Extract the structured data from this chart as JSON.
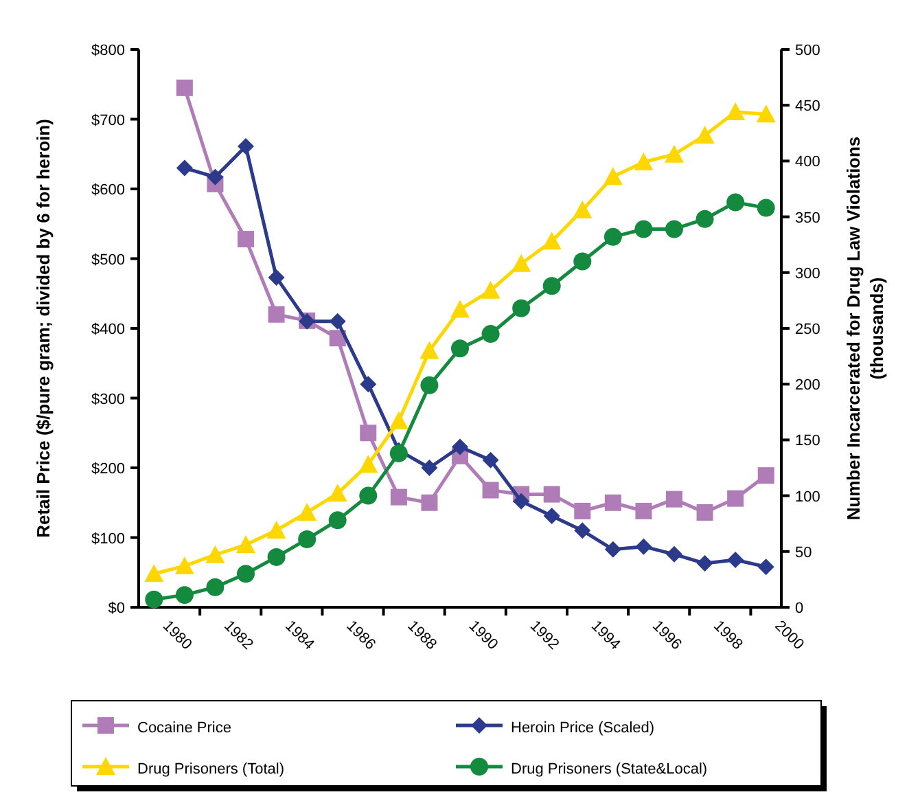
{
  "chart_data": {
    "type": "line",
    "ylabel": "Retail Price ($/pure gram; divided by 6 for heroin)",
    "y2label": "Number Incarcerated for Drug Law Violations\n(thousands)",
    "categories": [
      "1980",
      null,
      "1982",
      null,
      "1984",
      null,
      "1986",
      null,
      "1988",
      null,
      "1990",
      null,
      "1992",
      null,
      "1994",
      null,
      "1996",
      null,
      "1998",
      null,
      "2000"
    ],
    "ylim": [
      0,
      800
    ],
    "yticks": [
      {
        "value": 0,
        "label": "$0"
      },
      {
        "value": 100,
        "label": "$100"
      },
      {
        "value": 200,
        "label": "$200"
      },
      {
        "value": 300,
        "label": "$300"
      },
      {
        "value": 400,
        "label": "$400"
      },
      {
        "value": 500,
        "label": "$500"
      },
      {
        "value": 600,
        "label": "$600"
      },
      {
        "value": 700,
        "label": "$700"
      },
      {
        "value": 800,
        "label": "$800"
      }
    ],
    "y2lim": [
      0,
      500
    ],
    "y2ticks": [
      0,
      50,
      100,
      150,
      200,
      250,
      300,
      350,
      400,
      450,
      500
    ],
    "grid": false,
    "legend": "bottom",
    "series": [
      {
        "name": "Cocaine Price",
        "color": "#b07cb8",
        "marker": "square",
        "values": [
          null,
          745,
          607,
          528,
          420,
          411,
          386,
          250,
          158,
          150,
          217,
          168,
          162,
          162,
          138,
          150,
          138,
          155,
          136,
          156,
          189
        ]
      },
      {
        "name": "Heroin Price (Scaled)",
        "color": "#2b3a8a",
        "marker": "diamond",
        "values": [
          null,
          630,
          617,
          661,
          473,
          410,
          410,
          320,
          225,
          200,
          230,
          211,
          152,
          131,
          110,
          83,
          87,
          76,
          63,
          68,
          58
        ]
      },
      {
        "name": "Drug Prisoners (Total)",
        "color": "#ffd700",
        "marker": "triangle",
        "axis": "y2",
        "values": [
          30,
          37,
          47,
          56,
          69,
          85,
          102,
          128,
          167,
          230,
          267,
          284,
          308,
          328,
          356,
          386,
          399,
          406,
          423,
          444,
          442
        ]
      },
      {
        "name": "Drug Prisoners (State&Local)",
        "color": "#138a3e",
        "marker": "circle",
        "axis": "y2",
        "values": [
          7,
          11,
          18,
          30,
          45,
          61,
          78,
          100,
          138,
          199,
          232,
          245,
          268,
          288,
          310,
          332,
          339,
          339,
          348,
          363,
          358
        ]
      }
    ]
  }
}
